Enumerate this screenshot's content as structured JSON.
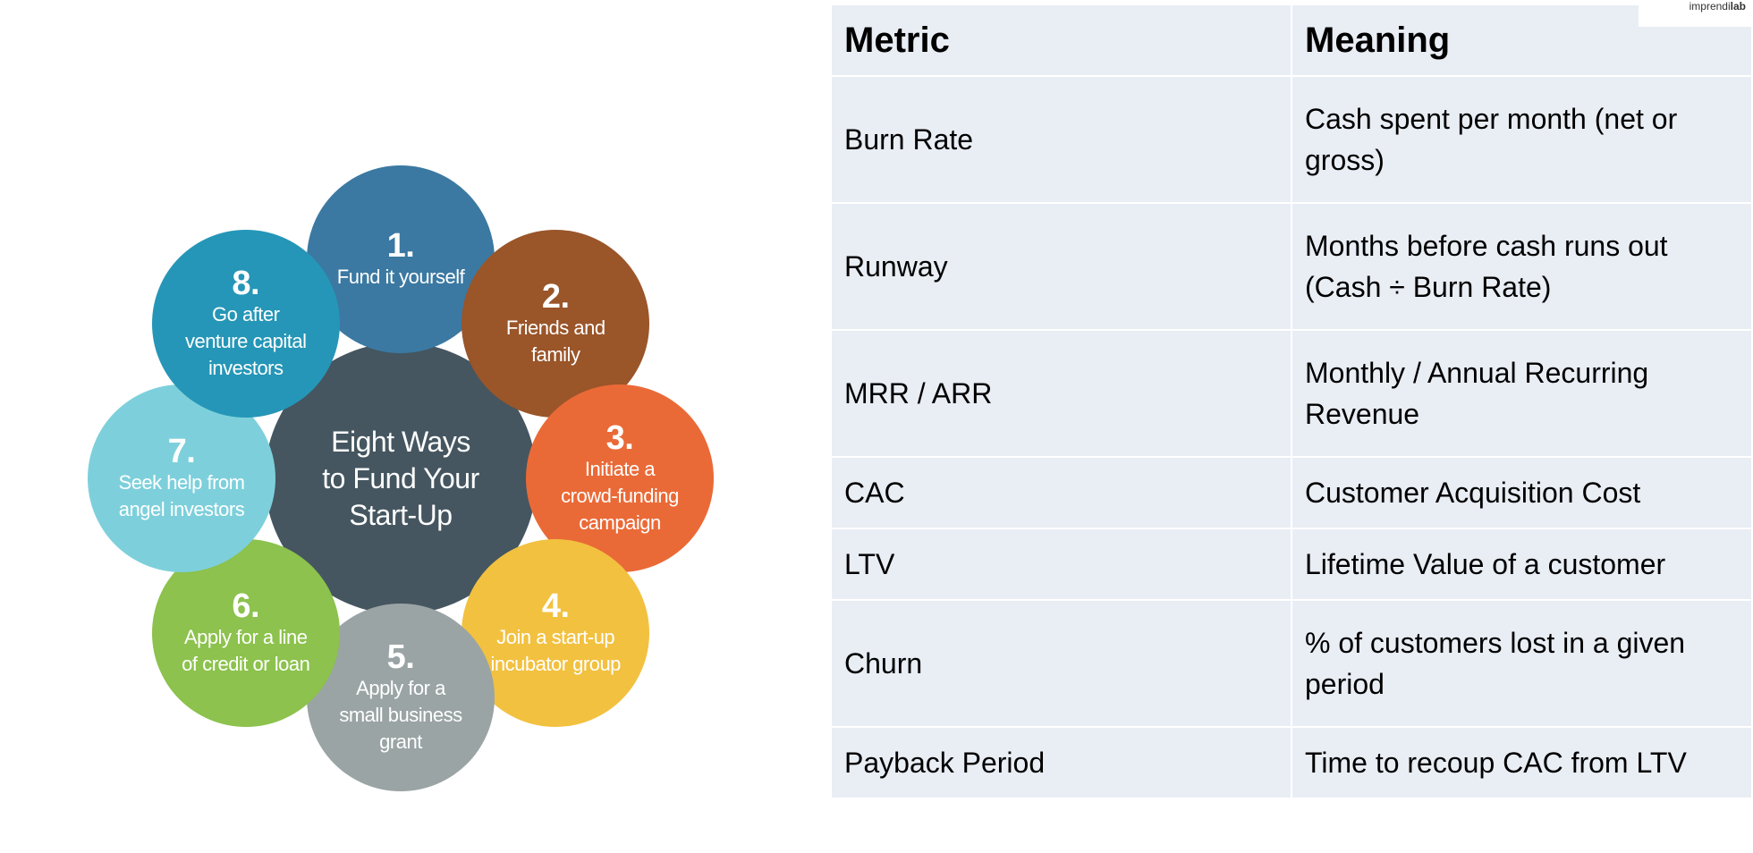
{
  "diagram": {
    "center": {
      "title": "Eight Ways\nto Fund Your\nStart-Up",
      "color": "#455660"
    },
    "items": [
      {
        "number": "1.",
        "text": "Fund it yourself",
        "color": "#3b79a2"
      },
      {
        "number": "2.",
        "text": "Friends and\nfamily",
        "color": "#9a5529"
      },
      {
        "number": "3.",
        "text": "Initiate a\ncrowd-funding\ncampaign",
        "color": "#ea6a37"
      },
      {
        "number": "4.",
        "text": "Join a start-up\nincubator group",
        "color": "#f2c140"
      },
      {
        "number": "5.",
        "text": "Apply for a\nsmall business\ngrant",
        "color": "#9aa4a5"
      },
      {
        "number": "6.",
        "text": "Apply for a line\nof credit or loan",
        "color": "#8cc24d"
      },
      {
        "number": "7.",
        "text": "Seek help from\nangel investors",
        "color": "#7dd0db"
      },
      {
        "number": "8.",
        "text": "Go after\nventure capital\ninvestors",
        "color": "#2596b7"
      }
    ],
    "arrow_color": "#5a5a5a"
  },
  "table": {
    "headers": [
      "Metric",
      "Meaning"
    ],
    "rows": [
      [
        "Burn Rate",
        "Cash spent per month (net or gross)"
      ],
      [
        "Runway",
        "Months before cash runs out (Cash ÷ Burn Rate)"
      ],
      [
        "MRR / ARR",
        "Monthly / Annual Recurring Revenue"
      ],
      [
        "CAC",
        "Customer Acquisition Cost"
      ],
      [
        "LTV",
        "Lifetime Value of a customer"
      ],
      [
        "Churn",
        "% of customers lost in a given period"
      ],
      [
        "Payback Period",
        "Time to recoup CAC from LTV"
      ]
    ]
  },
  "brand": {
    "part1": "imprendi",
    "part2": "lab"
  }
}
